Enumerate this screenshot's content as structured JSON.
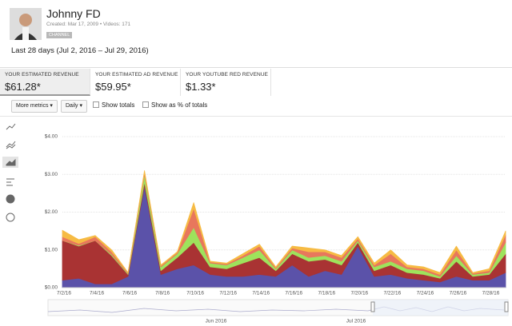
{
  "header": {
    "title": "Johnny FD",
    "meta": "Created: Mar 17, 2009 • Videos: 171",
    "badge": "CHANNEL"
  },
  "date_range": "Last 28 days (Jul 2, 2016 – Jul 29, 2016)",
  "metrics": [
    {
      "label": "YOUR ESTIMATED REVENUE",
      "value": "$61.28*"
    },
    {
      "label": "YOUR ESTIMATED AD REVENUE",
      "value": "$59.95*"
    },
    {
      "label": "YOUR YOUTUBE RED REVENUE",
      "value": "$1.33*"
    }
  ],
  "controls": {
    "more_metrics": "More metrics",
    "interval": "Daily",
    "show_totals": "Show totals",
    "show_percent": "Show as % of totals"
  },
  "navigator": {
    "labels": [
      "Jun 2016",
      "Jul 2016"
    ]
  },
  "chart_data": {
    "type": "stacked-area",
    "categories": [
      "7/2/16",
      null,
      "7/4/16",
      null,
      "7/6/16",
      null,
      "7/8/16",
      null,
      "7/10/16",
      null,
      "7/12/16",
      null,
      "7/14/16",
      null,
      "7/16/16",
      null,
      "7/18/16",
      null,
      "7/20/16",
      null,
      "7/22/16",
      null,
      "7/24/16",
      null,
      "7/26/16",
      null,
      "7/28/16",
      null
    ],
    "series": [
      {
        "color": "#5b52a9",
        "values": [
          0.2,
          0.25,
          0.1,
          0.1,
          0.3,
          2.7,
          0.35,
          0.5,
          0.6,
          0.35,
          0.3,
          0.3,
          0.35,
          0.3,
          0.6,
          0.3,
          0.45,
          0.35,
          1.1,
          0.3,
          0.35,
          0.25,
          0.2,
          0.15,
          0.3,
          0.2,
          0.2,
          0.4
        ]
      },
      {
        "color": "#a93333",
        "values": [
          1.05,
          0.85,
          1.15,
          0.75,
          0.05,
          0.1,
          0.1,
          0.3,
          0.6,
          0.2,
          0.2,
          0.35,
          0.45,
          0.15,
          0.3,
          0.4,
          0.3,
          0.25,
          0.1,
          0.15,
          0.25,
          0.15,
          0.15,
          0.1,
          0.4,
          0.1,
          0.15,
          0.5
        ]
      },
      {
        "color": "#9ee35c",
        "values": [
          0,
          0.02,
          0,
          0.03,
          0.02,
          0.2,
          0.1,
          0.1,
          0.4,
          0.1,
          0.1,
          0.15,
          0.2,
          0.05,
          0.1,
          0.1,
          0.1,
          0.1,
          0.05,
          0.1,
          0.1,
          0.1,
          0.1,
          0.05,
          0.15,
          0.05,
          0.05,
          0.3
        ]
      },
      {
        "color": "#e8775c",
        "values": [
          0.1,
          0.05,
          0.1,
          0.07,
          0.02,
          0.05,
          0.03,
          0.03,
          0.5,
          0.03,
          0.03,
          0.05,
          0.1,
          0.03,
          0.05,
          0.15,
          0.1,
          0.1,
          0.05,
          0.05,
          0.2,
          0.05,
          0.05,
          0.05,
          0.15,
          0.03,
          0.05,
          0.2
        ]
      },
      {
        "color": "#f6bb44",
        "values": [
          0.17,
          0.1,
          0.03,
          0.05,
          0.01,
          0.05,
          0.02,
          0.02,
          0.15,
          0.02,
          0.02,
          0.05,
          0.05,
          0.02,
          0.05,
          0.1,
          0.05,
          0.05,
          0.05,
          0.05,
          0.1,
          0.05,
          0.05,
          0.05,
          0.1,
          0.02,
          0.05,
          0.1
        ]
      }
    ],
    "ylim": [
      0,
      4
    ],
    "yticks": [
      {
        "value": 0,
        "label": "$0.00"
      },
      {
        "value": 1,
        "label": "$1.00"
      },
      {
        "value": 2,
        "label": "$2.00"
      },
      {
        "value": 3,
        "label": "$3.00"
      },
      {
        "value": 4,
        "label": "$4.00"
      }
    ],
    "grid": true
  }
}
